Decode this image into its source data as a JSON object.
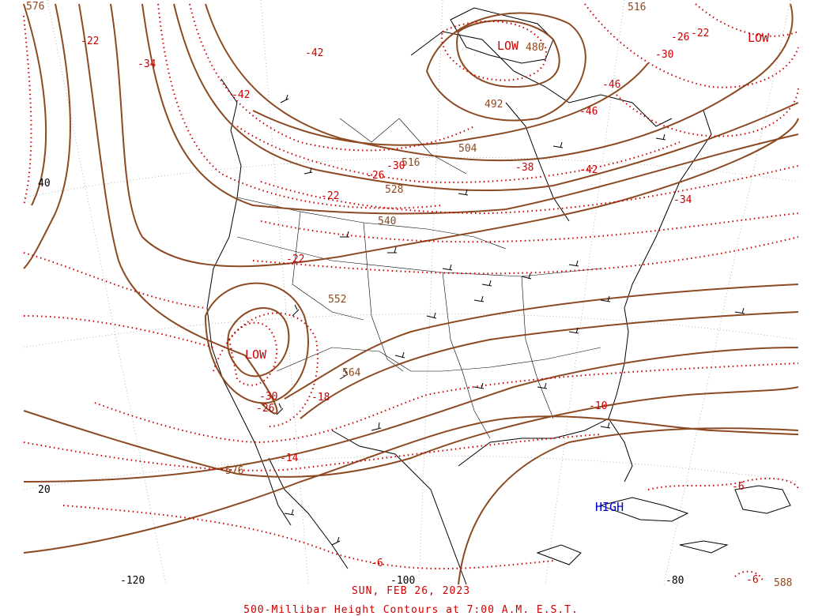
{
  "map": {
    "date": "SUN, FEB 26, 2023",
    "title": "500-Millibar Height Contours at 7:00 A.M. E.S.T.",
    "height_labels": [
      "576",
      "516",
      "492",
      "480",
      "504",
      "516",
      "528",
      "540",
      "552",
      "564",
      "576",
      "588"
    ],
    "temperature_labels": [
      "-22",
      "-34",
      "-42",
      "-42",
      "-46",
      "-46",
      "-30",
      "-26",
      "-22",
      "-42",
      "-38",
      "-30",
      "-26",
      "-22",
      "-34",
      "-22",
      "-30",
      "-26",
      "-18",
      "-14",
      "-10",
      "-6",
      "-6",
      "-6"
    ],
    "systems": [
      {
        "type": "LOW",
        "color": "#cc0000"
      },
      {
        "type": "LOW",
        "color": "#cc0000"
      },
      {
        "type": "LOW",
        "color": "#cc0000"
      },
      {
        "type": "HIGH",
        "color": "#0000cc"
      }
    ],
    "latitude_labels": [
      "40",
      "20"
    ],
    "longitude_labels": [
      "-120",
      "-100",
      "-80"
    ],
    "colors": {
      "height_contour": "#8b4a22",
      "temperature_contour": "#cc0000",
      "coastline": "#000000",
      "low": "#cc0000",
      "high": "#0000cc"
    }
  }
}
